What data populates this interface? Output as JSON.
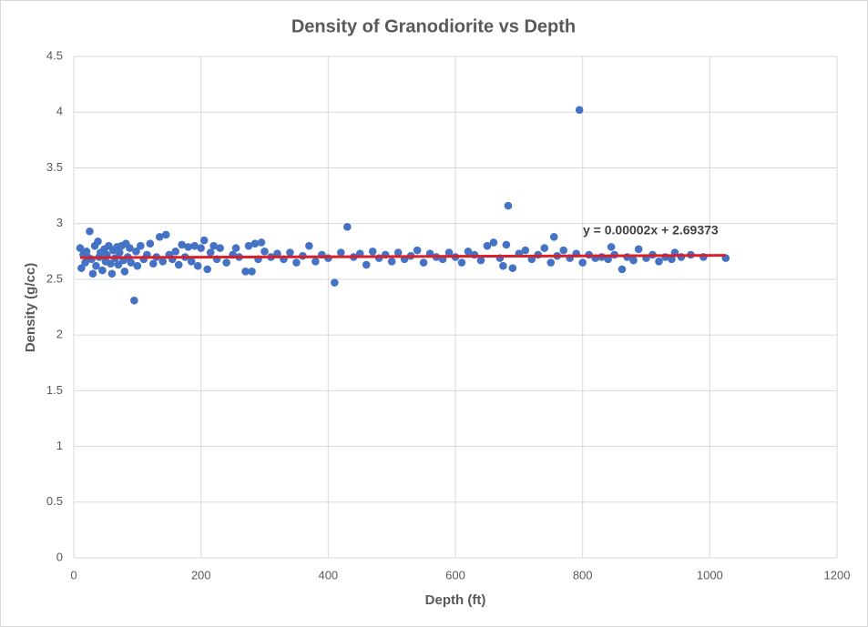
{
  "chart_data": {
    "type": "scatter",
    "title": "Density of Granodiorite vs Depth",
    "x_label": "Depth (ft)",
    "y_label": "Density (g/cc)",
    "xlim": [
      0,
      1200
    ],
    "xticks": [
      0,
      200,
      400,
      600,
      800,
      1000,
      1200
    ],
    "ylim": [
      0,
      4.5
    ],
    "yticks": [
      0,
      0.5,
      1,
      1.5,
      2,
      2.5,
      3,
      3.5,
      4,
      4.5
    ],
    "grid": true,
    "series": [
      {
        "color": "#4472c4",
        "x": [
          10,
          12,
          15,
          18,
          20,
          22,
          25,
          28,
          30,
          33,
          35,
          38,
          40,
          42,
          45,
          48,
          50,
          52,
          55,
          58,
          60,
          62,
          65,
          68,
          70,
          72,
          75,
          78,
          80,
          82,
          85,
          88,
          90,
          95,
          98,
          100,
          105,
          110,
          115,
          120,
          125,
          130,
          135,
          140,
          145,
          150,
          155,
          160,
          165,
          170,
          175,
          180,
          185,
          190,
          195,
          200,
          205,
          210,
          215,
          220,
          225,
          230,
          240,
          250,
          255,
          260,
          270,
          275,
          280,
          285,
          290,
          295,
          300,
          310,
          320,
          330,
          340,
          350,
          360,
          370,
          380,
          390,
          400,
          410,
          420,
          430,
          440,
          450,
          460,
          470,
          480,
          490,
          500,
          510,
          520,
          530,
          540,
          550,
          560,
          570,
          580,
          590,
          600,
          610,
          620,
          630,
          640,
          650,
          660,
          670,
          675,
          680,
          683,
          690,
          700,
          710,
          720,
          730,
          740,
          750,
          755,
          760,
          770,
          780,
          790,
          795,
          800,
          810,
          820,
          830,
          840,
          845,
          850,
          862,
          870,
          880,
          888,
          900,
          910,
          920,
          930,
          940,
          945,
          955,
          970,
          990,
          1025
        ],
        "values": [
          2.78,
          2.6,
          2.72,
          2.65,
          2.75,
          2.7,
          2.93,
          2.68,
          2.55,
          2.8,
          2.62,
          2.84,
          2.7,
          2.74,
          2.58,
          2.77,
          2.66,
          2.72,
          2.8,
          2.64,
          2.55,
          2.76,
          2.69,
          2.79,
          2.63,
          2.74,
          2.8,
          2.67,
          2.57,
          2.82,
          2.7,
          2.78,
          2.65,
          2.31,
          2.75,
          2.62,
          2.8,
          2.68,
          2.72,
          2.82,
          2.64,
          2.7,
          2.88,
          2.66,
          2.9,
          2.72,
          2.68,
          2.75,
          2.63,
          2.81,
          2.7,
          2.79,
          2.66,
          2.8,
          2.62,
          2.78,
          2.85,
          2.59,
          2.74,
          2.8,
          2.68,
          2.78,
          2.65,
          2.72,
          2.78,
          2.7,
          2.57,
          2.8,
          2.57,
          2.82,
          2.68,
          2.83,
          2.75,
          2.7,
          2.73,
          2.68,
          2.74,
          2.65,
          2.71,
          2.8,
          2.66,
          2.72,
          2.69,
          2.47,
          2.74,
          2.97,
          2.7,
          2.73,
          2.63,
          2.75,
          2.69,
          2.72,
          2.66,
          2.74,
          2.68,
          2.71,
          2.76,
          2.65,
          2.73,
          2.7,
          2.68,
          2.74,
          2.7,
          2.65,
          2.75,
          2.72,
          2.67,
          2.8,
          2.83,
          2.69,
          2.62,
          2.81,
          3.16,
          2.6,
          2.73,
          2.76,
          2.68,
          2.72,
          2.78,
          2.65,
          2.88,
          2.71,
          2.76,
          2.69,
          2.73,
          4.02,
          2.65,
          2.72,
          2.69,
          2.7,
          2.68,
          2.79,
          2.72,
          2.59,
          2.7,
          2.67,
          2.77,
          2.69,
          2.72,
          2.66,
          2.7,
          2.68,
          2.74,
          2.7,
          2.72,
          2.7,
          2.69
        ]
      }
    ],
    "trendline": {
      "slope": 2e-05,
      "intercept": 2.69373,
      "label": "y = 0.00002x + 2.69373",
      "color": "#d9202a"
    }
  }
}
